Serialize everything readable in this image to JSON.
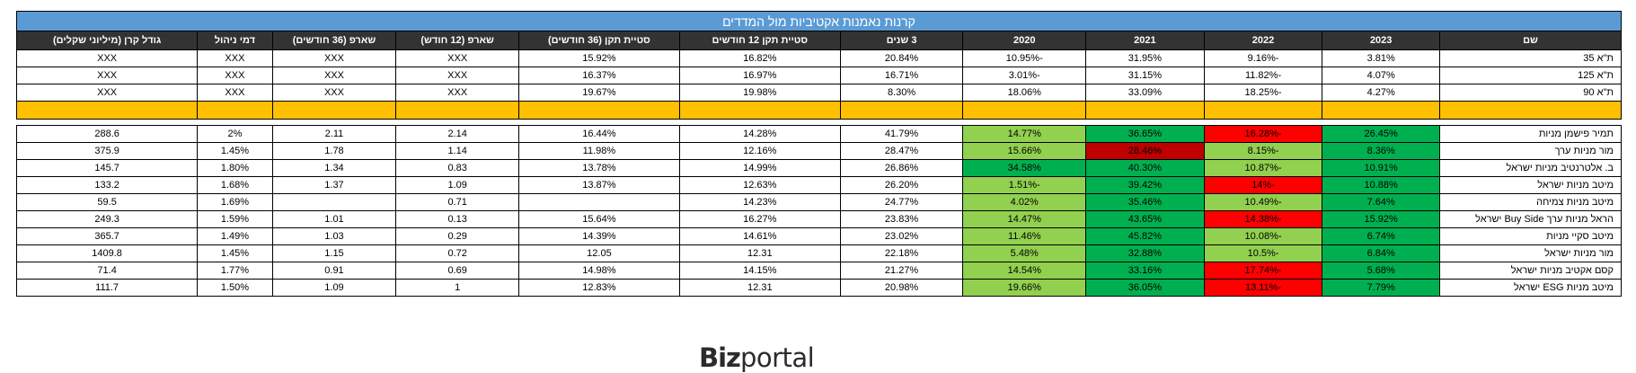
{
  "title": "קרנות נאמנות אקטיביות מול המדדים",
  "headers": [
    "שם",
    "2023",
    "2022",
    "2021",
    "2020",
    "3 שנים",
    "סטיית תקן 12 חודשים",
    "סטיית תקן (36 חודשים)",
    "שארפ (12 חודש)",
    "שארפ (36 חודשים)",
    "דמי ניהול",
    "גודל קרן (מיליוני שקלים)"
  ],
  "colors": {
    "title_bg": "#5b9bd5",
    "header_bg": "#333333",
    "separator": "#ffc000",
    "dark_green": "#00b050",
    "light_green": "#92d050",
    "red": "#ff0000",
    "dark_red": "#c00000"
  },
  "index_rows": [
    {
      "cells": [
        "ת\"א 35",
        "3.81%",
        "-9.16%",
        "31.95%",
        "-10.95%",
        "20.84%",
        "16.82%",
        "15.92%",
        "XXX",
        "XXX",
        "XXX",
        "XXX"
      ]
    },
    {
      "cells": [
        "ת\"א 125",
        "4.07%",
        "-11.82%",
        "31.15%",
        "-3.01%",
        "16.71%",
        "16.97%",
        "16.37%",
        "XXX",
        "XXX",
        "XXX",
        "XXX"
      ]
    },
    {
      "cells": [
        "ת\"א 90",
        "4.27%",
        "-18.25%",
        "33.09%",
        "18.06%",
        "8.30%",
        "19.98%",
        "19.67%",
        "XXX",
        "XXX",
        "XXX",
        "XXX"
      ]
    }
  ],
  "fund_rows": [
    {
      "cells": [
        "תמיר פישמן מניות",
        "26.45%",
        "-16.28%",
        "36.65%",
        "14.77%",
        "41.79%",
        "14.28%",
        "16.44%",
        "2.14",
        "2.11",
        "2%",
        "288.6"
      ],
      "year_colors": [
        "dark_green",
        "red",
        "dark_green",
        "light_green"
      ]
    },
    {
      "cells": [
        "מור מניות ערך",
        "8.36%",
        "-8.15%",
        "28.46%",
        "15.66%",
        "28.47%",
        "12.16%",
        "11.98%",
        "1.14",
        "1.78",
        "1.45%",
        "375.9"
      ],
      "year_colors": [
        "dark_green",
        "light_green",
        "dark_red",
        "light_green"
      ]
    },
    {
      "cells": [
        "ב. אלטרנטיב מניות ישראל",
        "10.91%",
        "-10.87%",
        "40.30%",
        "34.58%",
        "26.86%",
        "14.99%",
        "13.78%",
        "0.83",
        "1.34",
        "1.80%",
        "145.7"
      ],
      "year_colors": [
        "dark_green",
        "light_green",
        "dark_green",
        "dark_green"
      ]
    },
    {
      "cells": [
        "מיטב מניות ישראל",
        "10.88%",
        "-14%",
        "39.42%",
        "-1.51%",
        "26.20%",
        "12.63%",
        "13.87%",
        "1.09",
        "1.37",
        "1.68%",
        "133.2"
      ],
      "year_colors": [
        "dark_green",
        "red",
        "dark_green",
        "light_green"
      ]
    },
    {
      "cells": [
        "מיטב מניות צמיחה",
        "7.64%",
        "-10.49%",
        "35.46%",
        "4.02%",
        "24.77%",
        "14.23%",
        "",
        "0.71",
        "",
        "1.69%",
        "59.5"
      ],
      "year_colors": [
        "dark_green",
        "light_green",
        "dark_green",
        "light_green"
      ]
    },
    {
      "cells": [
        "הראל מניות ערך Buy Side ישראל",
        "15.92%",
        "-14.38%",
        "43.65%",
        "14.47%",
        "23.83%",
        "16.27%",
        "15.64%",
        "0.13",
        "1.01",
        "1.59%",
        "249.3"
      ],
      "year_colors": [
        "dark_green",
        "red",
        "dark_green",
        "light_green"
      ]
    },
    {
      "cells": [
        "מיטב סקיי מניות",
        "6.74%",
        "-10.08%",
        "45.82%",
        "11.46%",
        "23.02%",
        "14.61%",
        "14.39%",
        "0.29",
        "1.03",
        "1.49%",
        "365.7"
      ],
      "year_colors": [
        "dark_green",
        "light_green",
        "dark_green",
        "light_green"
      ]
    },
    {
      "cells": [
        "מור מניות ישראל",
        "6.84%",
        "-10.5%",
        "32.88%",
        "5.48%",
        "22.18%",
        "12.31",
        "12.05",
        "0.72",
        "1.15",
        "1.45%",
        "1409.8"
      ],
      "year_colors": [
        "dark_green",
        "light_green",
        "dark_green",
        "light_green"
      ]
    },
    {
      "cells": [
        "קסם אקטיב מניות ישראל",
        "5.68%",
        "-17.74%",
        "33.16%",
        "14.54%",
        "21.27%",
        "14.15%",
        "14.98%",
        "0.69",
        "0.91",
        "1.77%",
        "71.4"
      ],
      "year_colors": [
        "dark_green",
        "red",
        "dark_green",
        "light_green"
      ]
    },
    {
      "cells": [
        "מיטב מניות ESG ישראל",
        "7.79%",
        "-13.11%",
        "36.05%",
        "19.66%",
        "20.98%",
        "12.31",
        "12.83%",
        "1",
        "1.09",
        "1.50%",
        "111.7"
      ],
      "year_colors": [
        "dark_green",
        "red",
        "dark_green",
        "light_green"
      ]
    }
  ],
  "logo": {
    "bold": "Biz",
    "light": "portal"
  }
}
